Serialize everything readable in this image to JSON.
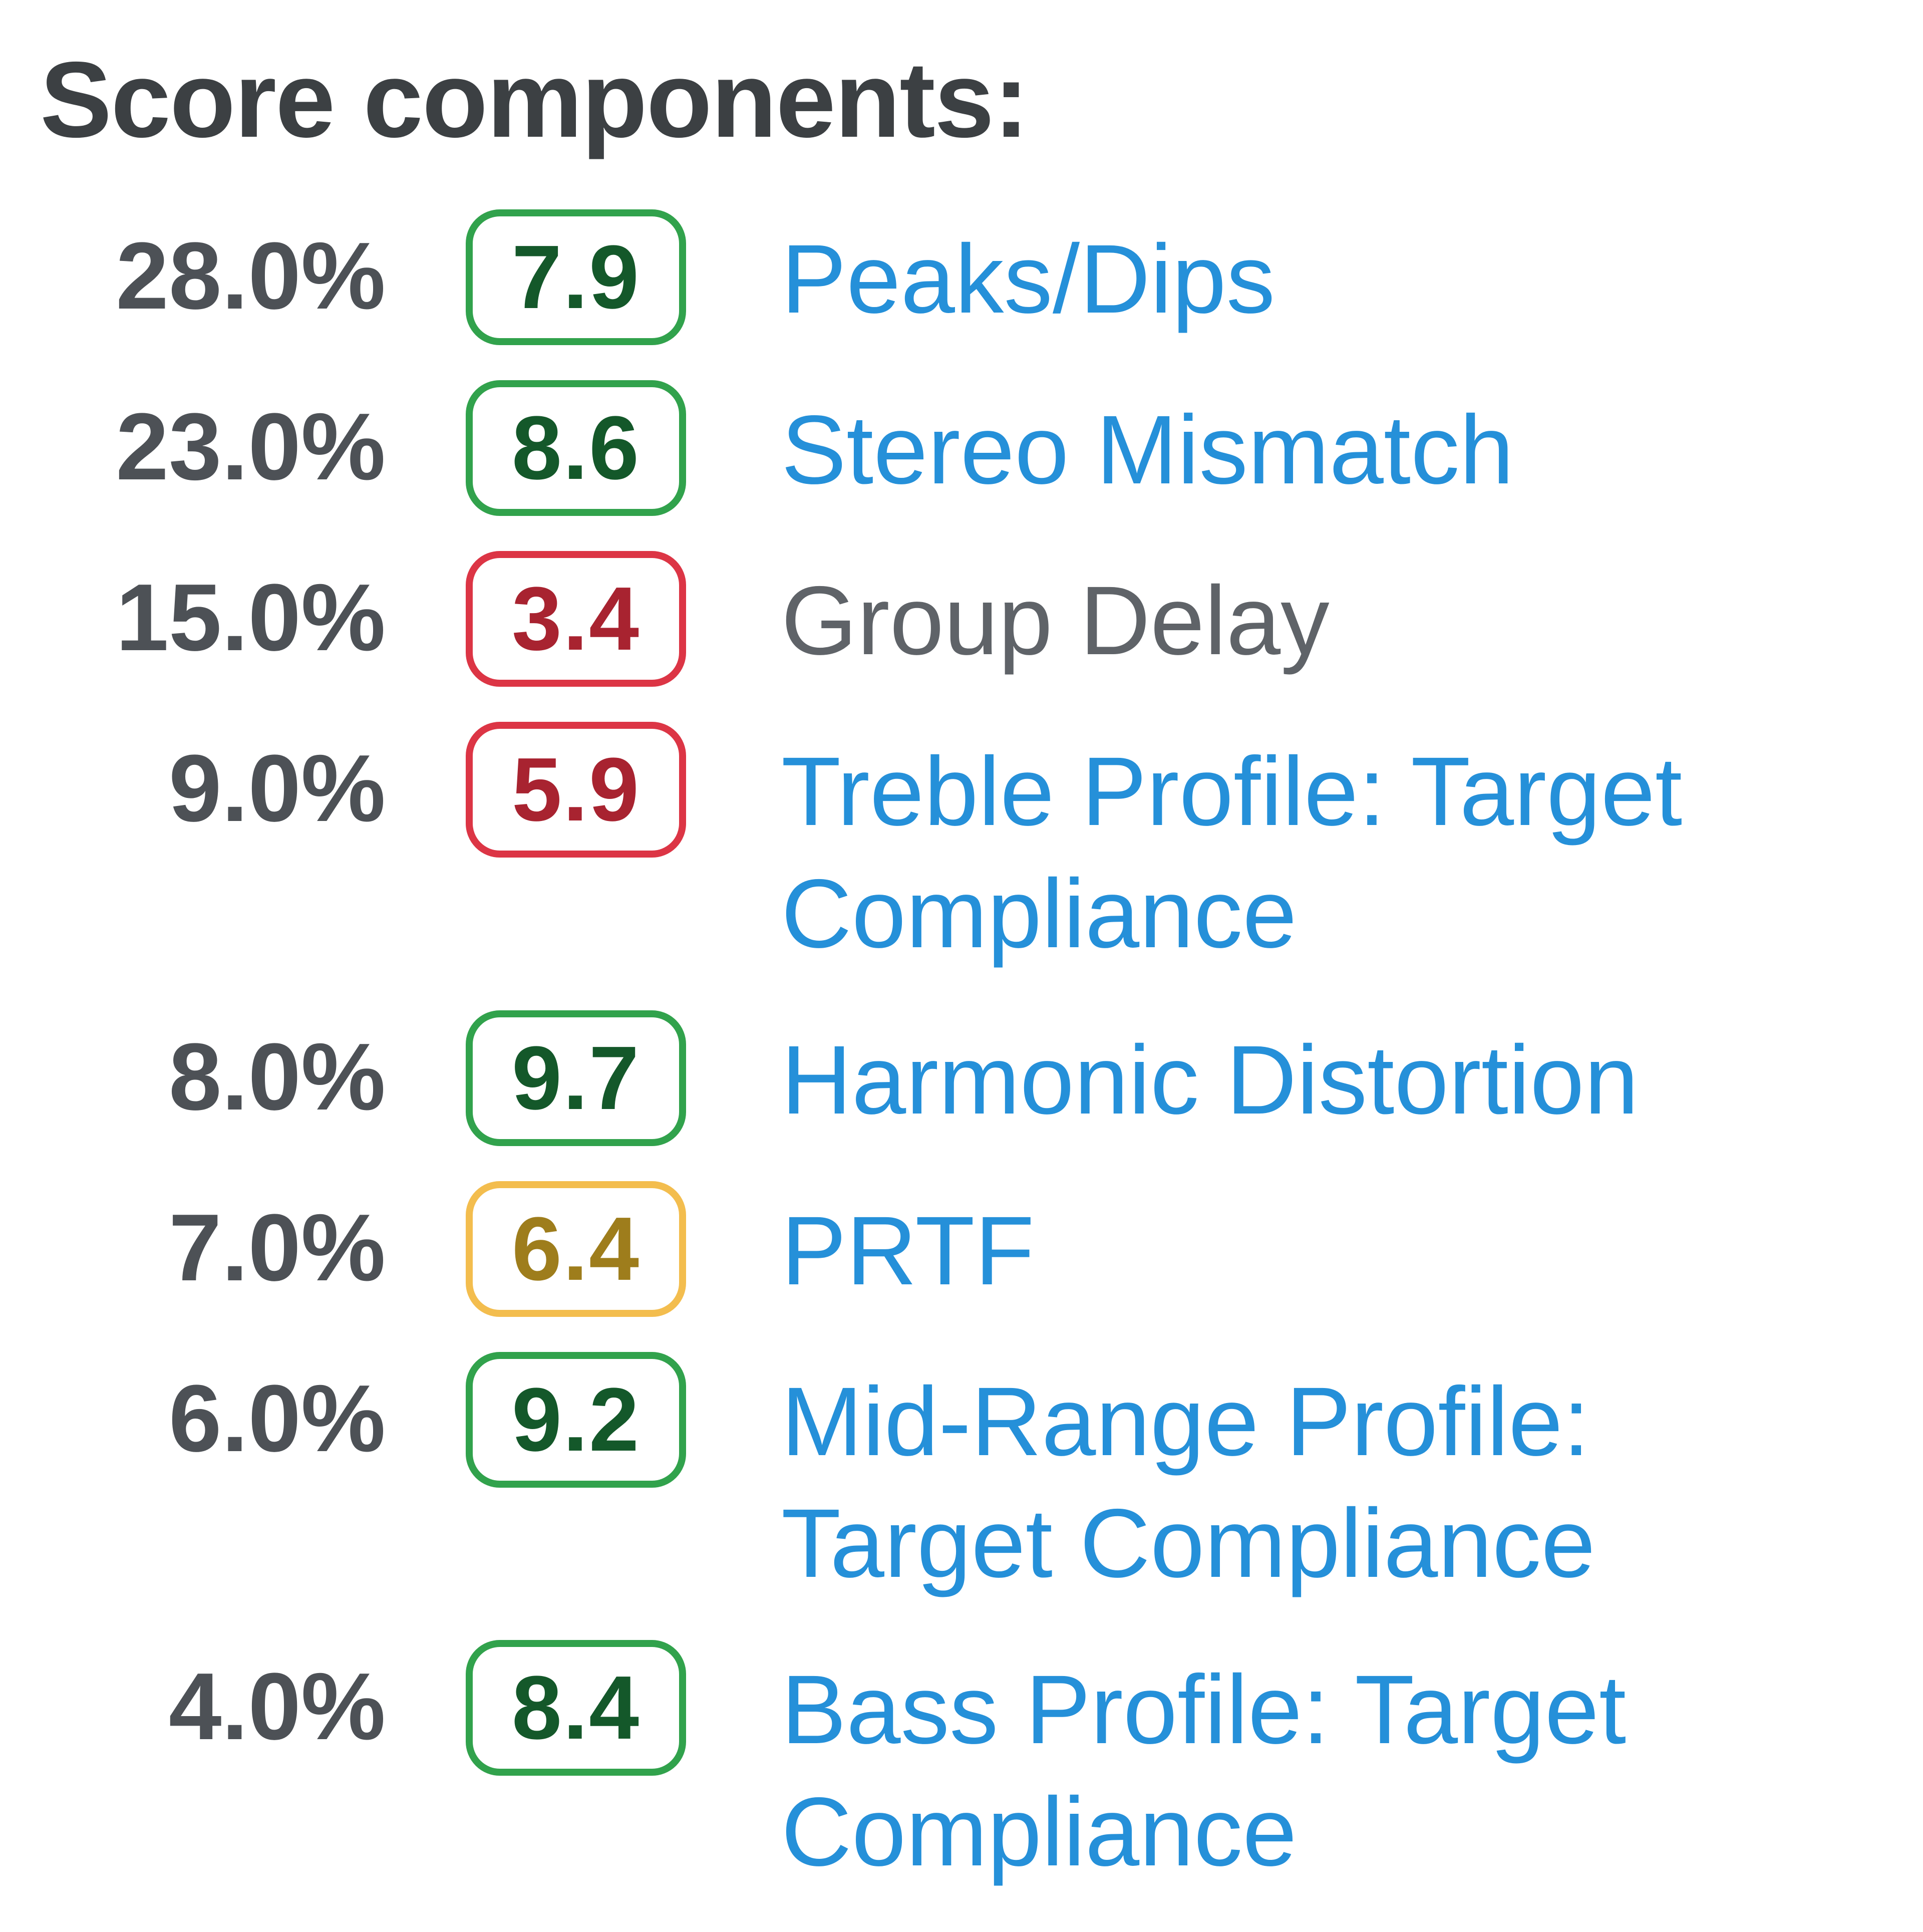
{
  "title": "Score components:",
  "colors": {
    "link": "#2590d9",
    "plain_label": "#5f6368",
    "weight_text": "#4d5156",
    "title_text": "#3c4043",
    "good_badge_border": "#31a24c",
    "good_badge_text": "#14582a",
    "bad_badge_border": "#dc3545",
    "bad_badge_text": "#a82330",
    "fair_badge_border": "#f3bd4e",
    "fair_badge_text": "#9e7d1c"
  },
  "components": [
    {
      "weight": "28.0%",
      "score": "7.9",
      "rating": "good",
      "label": "Peaks/Dips",
      "kind": "link"
    },
    {
      "weight": "23.0%",
      "score": "8.6",
      "rating": "good",
      "label": "Stereo Mismatch",
      "kind": "link"
    },
    {
      "weight": "15.0%",
      "score": "3.4",
      "rating": "bad",
      "label": "Group Delay",
      "kind": "plain"
    },
    {
      "weight": "9.0%",
      "score": "5.9",
      "rating": "bad",
      "label": "Treble Profile: Target Compliance",
      "kind": "link"
    },
    {
      "weight": "8.0%",
      "score": "9.7",
      "rating": "good",
      "label": "Harmonic Distortion",
      "kind": "link"
    },
    {
      "weight": "7.0%",
      "score": "6.4",
      "rating": "fair",
      "label": "PRTF",
      "kind": "link"
    },
    {
      "weight": "6.0%",
      "score": "9.2",
      "rating": "good",
      "label": "Mid-Range Profile: Target Compliance",
      "kind": "link"
    },
    {
      "weight": "4.0%",
      "score": "8.4",
      "rating": "good",
      "label": "Bass Profile: Target Compliance",
      "kind": "link"
    }
  ]
}
